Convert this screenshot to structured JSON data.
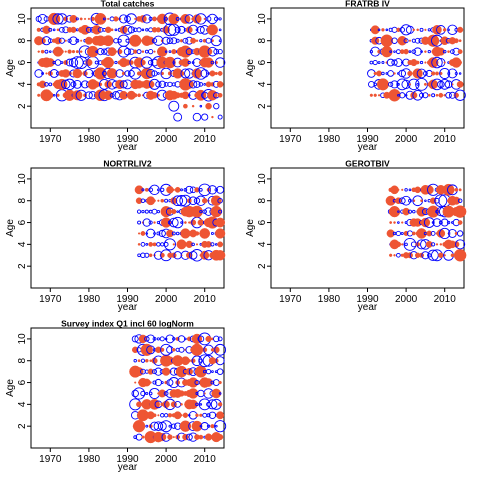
{
  "colors": {
    "positive": "#0000ff",
    "negative": "#ee5533",
    "axis": "#000000"
  },
  "chart_data": [
    {
      "type": "scatter",
      "title": "Total catches",
      "xlabel": "year",
      "ylabel": "Age",
      "xlim": [
        1965,
        2015
      ],
      "ylim": [
        0,
        11
      ],
      "xticks": [
        "1970",
        "1980",
        "1990",
        "2000",
        "2010"
      ],
      "yticks": [
        "2",
        "4",
        "6",
        "8",
        "10"
      ],
      "year_range": [
        1967,
        2014
      ],
      "age_range": [
        3,
        10
      ],
      "extra_points": [
        [
          2002,
          2
        ],
        [
          2003,
          1
        ],
        [
          2005,
          2
        ],
        [
          2007,
          2
        ],
        [
          2008,
          1
        ],
        [
          2009,
          2
        ],
        [
          2010,
          1
        ],
        [
          2011,
          2
        ],
        [
          2012,
          1
        ],
        [
          2013,
          2
        ],
        [
          2014,
          1
        ]
      ],
      "seed": 11
    },
    {
      "type": "scatter",
      "title": "FRATRB IV",
      "xlabel": "year",
      "ylabel": "Age",
      "xlim": [
        1965,
        2015
      ],
      "ylim": [
        0,
        11
      ],
      "xticks": [
        "1970",
        "1980",
        "1990",
        "2000",
        "2010"
      ],
      "yticks": [
        "2",
        "4",
        "6",
        "8",
        "10"
      ],
      "year_range": [
        1991,
        2014
      ],
      "age_range": [
        3,
        9
      ],
      "extra_points": [],
      "seed": 23
    },
    {
      "type": "scatter",
      "title": "NORTRLIV2",
      "xlabel": "year",
      "ylabel": "Age",
      "xlim": [
        1965,
        2015
      ],
      "ylim": [
        0,
        11
      ],
      "xticks": [
        "1970",
        "1980",
        "1990",
        "2000",
        "2010"
      ],
      "yticks": [
        "2",
        "4",
        "6",
        "8",
        "10"
      ],
      "year_range": [
        1993,
        2014
      ],
      "age_range": [
        3,
        9
      ],
      "extra_points": [],
      "seed": 37
    },
    {
      "type": "scatter",
      "title": "GEROTBIV",
      "xlabel": "year",
      "ylabel": "Age",
      "xlim": [
        1965,
        2015
      ],
      "ylim": [
        0,
        11
      ],
      "xticks": [
        "1970",
        "1980",
        "1990",
        "2000",
        "2010"
      ],
      "yticks": [
        "2",
        "4",
        "6",
        "8",
        "10"
      ],
      "year_range": [
        1996,
        2014
      ],
      "age_range": [
        3,
        9
      ],
      "extra_points": [],
      "seed": 53
    },
    {
      "type": "scatter",
      "title": "Survey index Q1 incl 60 logNorm",
      "xlabel": "year",
      "ylabel": "Age",
      "xlim": [
        1965,
        2015
      ],
      "ylim": [
        0,
        11
      ],
      "xticks": [
        "1970",
        "1980",
        "1990",
        "2000",
        "2010"
      ],
      "yticks": [
        "2",
        "4",
        "6",
        "8",
        "10"
      ],
      "year_range": [
        1992,
        2014
      ],
      "age_range": [
        1,
        10
      ],
      "extra_points": [],
      "seed": 71
    }
  ]
}
